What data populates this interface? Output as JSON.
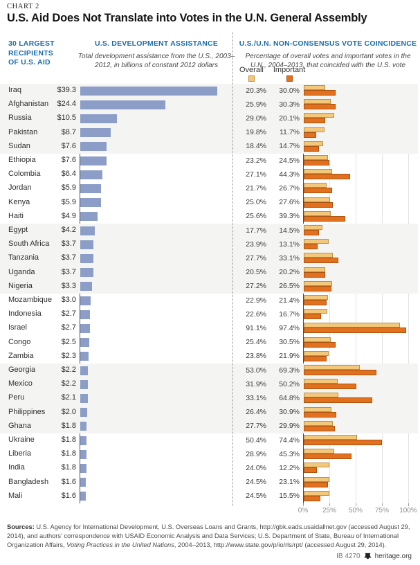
{
  "chart_label": "CHART 2",
  "title": "U.S. Aid Does Not Translate into Votes in the U.N. General Assembly",
  "row_header": "30 LARGEST\nRECIPIENTS\nOF U.S. AID",
  "colors": {
    "header_blue": "#1b6da8",
    "aid_bar": "#8c9ec7",
    "overall_fill": "#f3c87b",
    "overall_border": "#bd9045",
    "important_fill": "#e2711f",
    "important_border": "#a85210",
    "band_gray": "#f4f4f2"
  },
  "chart_data": {
    "type": "bar",
    "panels": [
      {
        "title": "U.S. DEVELOPMENT ASSISTANCE",
        "subtitle": "Total development assistance from the U.S., 2003–2012, in billions of constant 2012 dollars",
        "series": "aid_billions",
        "value_prefix": "$",
        "xlim": [
          0,
          40
        ],
        "grid": false
      },
      {
        "title": "U.S./U.N. NON-CONSENSUS VOTE COINCIDENCE",
        "subtitle": "Percentage of overall votes and important votes in the U.N., 2004–2013, that coincided with the U.S. vote",
        "series": [
          "overall_pct",
          "important_pct"
        ],
        "legend": [
          "Overall",
          "Important"
        ],
        "xlim": [
          0,
          100
        ],
        "x_ticks": [
          "0%",
          "25%",
          "50%",
          "75%",
          "100%"
        ],
        "grid": true
      }
    ],
    "categories": [
      "Iraq",
      "Afghanistan",
      "Russia",
      "Pakistan",
      "Sudan",
      "Ethiopia",
      "Colombia",
      "Jordan",
      "Kenya",
      "Haiti",
      "Egypt",
      "South Africa",
      "Tanzania",
      "Uganda",
      "Nigeria",
      "Mozambique",
      "Indonesia",
      "Israel",
      "Congo",
      "Zambia",
      "Georgia",
      "Mexico",
      "Peru",
      "Philippines",
      "Ghana",
      "Ukraine",
      "Liberia",
      "India",
      "Bangladesh",
      "Mali"
    ],
    "aid_billions": [
      39.3,
      24.4,
      10.5,
      8.7,
      7.6,
      7.6,
      6.4,
      5.9,
      5.9,
      4.9,
      4.2,
      3.7,
      3.7,
      3.7,
      3.3,
      3.0,
      2.7,
      2.7,
      2.5,
      2.3,
      2.2,
      2.2,
      2.1,
      2.0,
      1.8,
      1.8,
      1.8,
      1.8,
      1.6,
      1.6
    ],
    "overall_pct": [
      20.3,
      25.9,
      29.0,
      19.8,
      18.4,
      23.2,
      27.1,
      21.7,
      25.0,
      25.6,
      17.7,
      23.9,
      27.7,
      20.5,
      27.2,
      22.9,
      22.6,
      91.1,
      25.4,
      23.8,
      53.0,
      31.9,
      33.1,
      26.4,
      27.7,
      50.4,
      28.9,
      24.0,
      24.5,
      24.5
    ],
    "important_pct": [
      30.0,
      30.3,
      20.1,
      11.7,
      14.7,
      24.5,
      44.3,
      26.7,
      27.6,
      39.3,
      14.5,
      13.1,
      33.1,
      20.2,
      26.5,
      21.4,
      16.7,
      97.4,
      30.5,
      21.9,
      69.3,
      50.2,
      64.8,
      30.9,
      29.9,
      74.4,
      45.3,
      12.2,
      23.1,
      15.5
    ]
  },
  "sources": {
    "label": "Sources:",
    "part1": " U.S. Agency for International Development, U.S. Overseas Loans and Grants, http://gbk.eads.usaidallnet.gov (accessed August 29, 2014), and authors’ correspondence with USAID Economic Analysis and Data Services; U.S. Department of State, Bureau of International Organization Affairs, ",
    "italic": "Voting Practices in the United Nations",
    "part2": ", 2004–2013, http://www.state.gov/p/io/rls/rpt/ (accessed August 29, 2014)."
  },
  "footer": {
    "id": "IB 4270",
    "site": "heritage.org"
  }
}
